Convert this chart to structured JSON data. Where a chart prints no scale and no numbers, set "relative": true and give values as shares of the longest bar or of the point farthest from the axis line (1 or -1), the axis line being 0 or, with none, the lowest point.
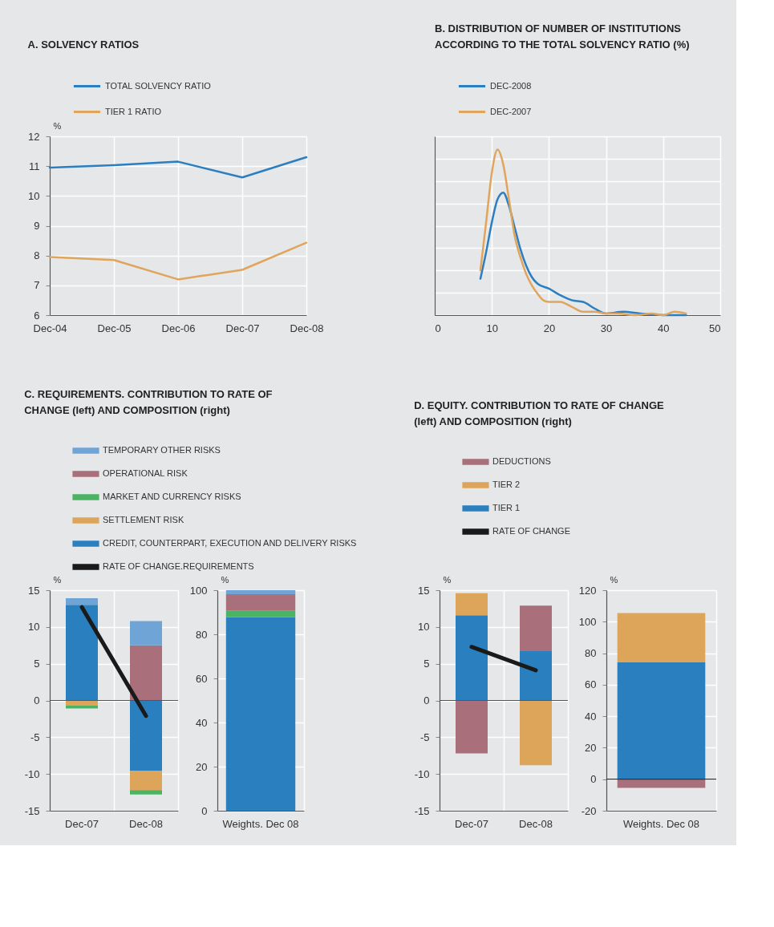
{
  "chart_data": [
    {
      "type": "line",
      "title": "A. SOLVENCY RATIOS",
      "ylabel": "%",
      "categories": [
        "Dec-04",
        "Dec-05",
        "Dec-06",
        "Dec-07",
        "Dec-08"
      ],
      "ylim": [
        6,
        12
      ],
      "yticks": [
        6,
        7,
        8,
        9,
        10,
        11,
        12
      ],
      "grid": true,
      "legend": "top",
      "series": [
        {
          "name": "TOTAL SOLVENCY RATIO",
          "color": "#2b7fc0",
          "values": [
            10.95,
            11.03,
            11.15,
            10.62,
            11.3
          ]
        },
        {
          "name": "TIER 1 RATIO",
          "color": "#e0a55c",
          "values": [
            7.95,
            7.85,
            7.2,
            7.52,
            8.43
          ]
        }
      ]
    },
    {
      "type": "line",
      "title": "B. DISTRIBUTION OF NUMBER OF INSTITUTIONS ACCORDING TO THE TOTAL SOLVENCY RATIO (%)",
      "relative": true,
      "xlim": [
        0,
        50
      ],
      "xticks": [
        0,
        10,
        20,
        30,
        40,
        50
      ],
      "grid": true,
      "legend": "top",
      "series": [
        {
          "name": "DEC-2008",
          "color": "#2b7fc0",
          "x": [
            8,
            9,
            10,
            11,
            12,
            13,
            14,
            15,
            16,
            17,
            18,
            20,
            22,
            24,
            26,
            28,
            30,
            33,
            36,
            40,
            44
          ],
          "values": [
            0.22,
            0.38,
            0.56,
            0.7,
            0.74,
            0.66,
            0.53,
            0.4,
            0.3,
            0.23,
            0.19,
            0.16,
            0.12,
            0.09,
            0.08,
            0.04,
            0.01,
            0.02,
            0.01,
            0.0,
            0.0
          ]
        },
        {
          "name": "DEC-2007",
          "color": "#e0a55c",
          "x": [
            8,
            9,
            10,
            11,
            12,
            13,
            14,
            15,
            16,
            17,
            18,
            19,
            20,
            22,
            24,
            26,
            28,
            30,
            32,
            35,
            38,
            40,
            42,
            44
          ],
          "values": [
            0.27,
            0.56,
            0.86,
            1.0,
            0.91,
            0.7,
            0.48,
            0.35,
            0.25,
            0.18,
            0.13,
            0.09,
            0.08,
            0.08,
            0.05,
            0.02,
            0.02,
            0.01,
            0.01,
            0.0,
            0.01,
            0.0,
            0.02,
            0.01
          ]
        }
      ]
    },
    {
      "type": "bar",
      "stacked": true,
      "title": "C. REQUIREMENTS. CONTRIBUTION TO RATE OF CHANGE (left) AND COMPOSITION (right)",
      "ylabel": "%",
      "categories": [
        "Dec-07",
        "Dec-08"
      ],
      "ylim": [
        -15,
        15
      ],
      "yticks": [
        -15,
        -10,
        -5,
        0,
        5,
        10,
        15
      ],
      "grid": true,
      "legend": "top",
      "ref_lines": [
        {
          "axis": "y",
          "value": 0,
          "color": "#555555"
        }
      ],
      "series": [
        {
          "name": "CREDIT, COUNTERPART, EXECUTION AND DELIVERY RISKS",
          "color": "#2a80bf",
          "values": [
            13.0,
            -9.6
          ]
        },
        {
          "name": "SETTLEMENT RISK",
          "color": "#dda55a",
          "values": [
            -0.7,
            -2.6
          ]
        },
        {
          "name": "MARKET AND CURRENCY RISKS",
          "color": "#4cb364",
          "values": [
            -0.4,
            -0.6
          ]
        },
        {
          "name": "OPERATIONAL RISK",
          "color": "#a9707b",
          "values": [
            null,
            7.5
          ]
        },
        {
          "name": "TEMPORARY OTHER RISKS",
          "color": "#6fa5d6",
          "values": [
            0.9,
            3.3
          ]
        },
        {
          "name": "RATE OF CHANGE.REQUIREMENTS",
          "type": "line",
          "color": "#1a1a1a",
          "values": [
            12.7,
            -2.1
          ]
        }
      ]
    },
    {
      "type": "bar",
      "stacked": true,
      "ylabel": "%",
      "categories": [
        "Weights. Dec 08"
      ],
      "ylim": [
        0,
        100
      ],
      "yticks": [
        0,
        20,
        40,
        60,
        80,
        100
      ],
      "grid": true,
      "series": [
        {
          "color": "#2a80bf",
          "values": [
            87.7
          ]
        },
        {
          "color": "#4cb364",
          "values": [
            2.9
          ]
        },
        {
          "color": "#a9707b",
          "values": [
            7.6
          ]
        },
        {
          "color": "#6fa5d6",
          "values": [
            1.8
          ]
        }
      ]
    },
    {
      "type": "bar",
      "stacked": true,
      "title": "D. EQUITY. CONTRIBUTION TO RATE OF CHANGE (left) AND COMPOSITION (right)",
      "ylabel": "%",
      "categories": [
        "Dec-07",
        "Dec-08"
      ],
      "ylim": [
        -15,
        15
      ],
      "yticks": [
        -15,
        -10,
        -5,
        0,
        5,
        10,
        15
      ],
      "grid": true,
      "legend": "top",
      "ref_lines": [
        {
          "axis": "y",
          "value": 0,
          "color": "#555555"
        }
      ],
      "series": [
        {
          "name": "TIER 1",
          "color": "#2a80bf",
          "values": [
            11.6,
            6.7
          ]
        },
        {
          "name": "TIER 2",
          "color": "#dda55a",
          "values": [
            3.0,
            -8.8
          ]
        },
        {
          "name": "DEDUCTIONS",
          "color": "#a9707b",
          "values": [
            -7.2,
            6.2
          ]
        },
        {
          "name": "RATE OF CHANGE",
          "type": "line",
          "color": "#1a1a1a",
          "values": [
            7.3,
            4.1
          ]
        }
      ]
    },
    {
      "type": "bar",
      "stacked": true,
      "ylabel": "%",
      "categories": [
        "Weights. Dec 08"
      ],
      "ylim": [
        -20,
        120
      ],
      "yticks": [
        -20,
        0,
        20,
        40,
        60,
        80,
        100,
        120
      ],
      "grid": true,
      "ref_lines": [
        {
          "axis": "y",
          "value": 0,
          "color": "#333333"
        }
      ],
      "series": [
        {
          "color": "#2a80bf",
          "values": [
            74.2
          ]
        },
        {
          "color": "#dda55a",
          "values": [
            31.3
          ]
        },
        {
          "color": "#a9707b",
          "values": [
            -5.5
          ]
        }
      ]
    }
  ]
}
